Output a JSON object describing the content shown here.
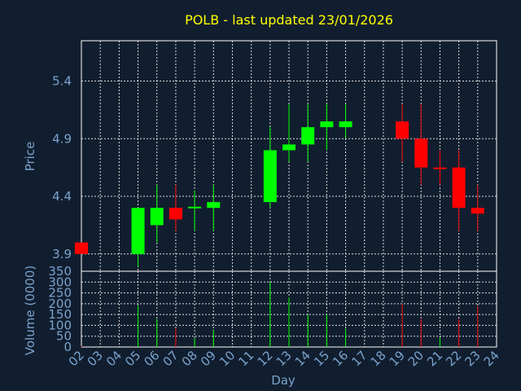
{
  "chart_data": [
    {
      "type": "candlestick",
      "title": "POLB - last updated 23/01/2026",
      "ylabel": "Price",
      "ylim": [
        3.75,
        5.75
      ],
      "yticks": [
        {
          "value": 3.9,
          "label": "3.9"
        },
        {
          "value": 4.4,
          "label": "4.4"
        },
        {
          "value": 4.9,
          "label": "4.9"
        },
        {
          "value": 5.4,
          "label": "5.4"
        }
      ],
      "colors": {
        "up": "#00ff00",
        "down": "#ff0000",
        "flat": "#00ff00"
      },
      "candles": [
        {
          "day": "02",
          "open": 4.0,
          "high": 4.0,
          "low": 3.9,
          "close": 3.9
        },
        {
          "day": "05",
          "open": 3.9,
          "high": 4.3,
          "low": 3.79,
          "close": 4.3
        },
        {
          "day": "06",
          "open": 4.15,
          "high": 4.5,
          "low": 4.0,
          "close": 4.3
        },
        {
          "day": "07",
          "open": 4.3,
          "high": 4.5,
          "low": 4.1,
          "close": 4.2
        },
        {
          "day": "08",
          "open": 4.3,
          "high": 4.45,
          "low": 4.1,
          "close": 4.31
        },
        {
          "day": "09",
          "open": 4.3,
          "high": 4.5,
          "low": 4.1,
          "close": 4.35
        },
        {
          "day": "12",
          "open": 4.35,
          "high": 5.0,
          "low": 4.3,
          "close": 4.8
        },
        {
          "day": "13",
          "open": 4.8,
          "high": 5.2,
          "low": 4.7,
          "close": 4.85
        },
        {
          "day": "14",
          "open": 4.85,
          "high": 5.2,
          "low": 4.7,
          "close": 5.0
        },
        {
          "day": "15",
          "open": 5.0,
          "high": 5.2,
          "low": 4.8,
          "close": 5.05
        },
        {
          "day": "16",
          "open": 5.0,
          "high": 5.2,
          "low": 4.9,
          "close": 5.05
        },
        {
          "day": "19",
          "open": 5.05,
          "high": 5.2,
          "low": 4.7,
          "close": 4.9
        },
        {
          "day": "20",
          "open": 4.9,
          "high": 5.2,
          "low": 4.5,
          "close": 4.65
        },
        {
          "day": "21",
          "open": 4.65,
          "high": 4.8,
          "low": 4.5,
          "close": 4.64
        },
        {
          "day": "22",
          "open": 4.65,
          "high": 4.8,
          "low": 4.1,
          "close": 4.3
        },
        {
          "day": "23",
          "open": 4.3,
          "high": 4.5,
          "low": 4.1,
          "close": 4.25
        }
      ]
    },
    {
      "type": "bar",
      "xlabel": "Day",
      "ylabel": "Volume (0000)",
      "ylim": [
        0,
        350
      ],
      "yticks": [
        "0",
        "50",
        "100",
        "150",
        "200",
        "250",
        "300",
        "350"
      ],
      "categories": [
        "02",
        "03",
        "04",
        "05",
        "06",
        "07",
        "08",
        "09",
        "10",
        "11",
        "12",
        "13",
        "14",
        "15",
        "16",
        "17",
        "18",
        "19",
        "20",
        "21",
        "22",
        "23",
        "24"
      ],
      "volumes": [
        {
          "day": "02",
          "value": 5,
          "direction": "down"
        },
        {
          "day": "05",
          "value": 190,
          "direction": "up"
        },
        {
          "day": "06",
          "value": 130,
          "direction": "up"
        },
        {
          "day": "07",
          "value": 85,
          "direction": "down"
        },
        {
          "day": "08",
          "value": 40,
          "direction": "up"
        },
        {
          "day": "09",
          "value": 80,
          "direction": "up"
        },
        {
          "day": "12",
          "value": 300,
          "direction": "up"
        },
        {
          "day": "13",
          "value": 230,
          "direction": "up"
        },
        {
          "day": "14",
          "value": 150,
          "direction": "up"
        },
        {
          "day": "15",
          "value": 150,
          "direction": "up"
        },
        {
          "day": "16",
          "value": 85,
          "direction": "up"
        },
        {
          "day": "19",
          "value": 200,
          "direction": "down"
        },
        {
          "day": "20",
          "value": 130,
          "direction": "down"
        },
        {
          "day": "21",
          "value": 45,
          "direction": "up"
        },
        {
          "day": "22",
          "value": 130,
          "direction": "down"
        },
        {
          "day": "23",
          "value": 190,
          "direction": "down"
        }
      ]
    }
  ]
}
